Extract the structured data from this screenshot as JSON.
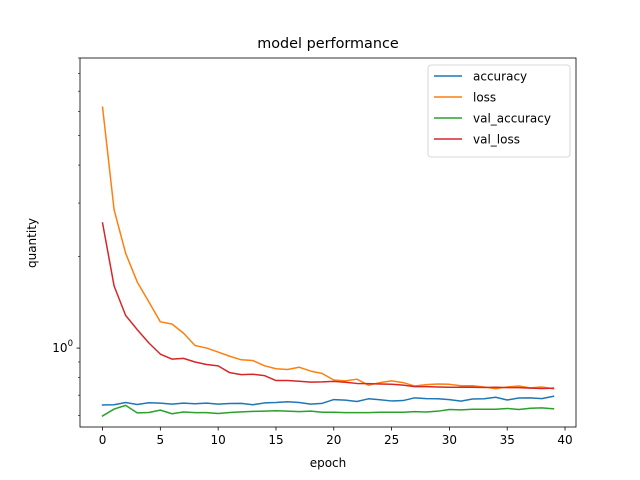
{
  "chart_data": {
    "type": "line",
    "title": "model performance",
    "xlabel": "epoch",
    "ylabel": "quantity",
    "yscale": "log",
    "xlim": [
      -1.95,
      40.95
    ],
    "ylim": [
      0.55,
      9.0
    ],
    "xticks": [
      0,
      5,
      10,
      15,
      20,
      25,
      30,
      35,
      40
    ],
    "yticks": [
      1.0
    ],
    "ytick_labels": [
      "10^0"
    ],
    "legend_position": "upper right",
    "series": [
      {
        "name": "accuracy",
        "color": "#1f77b4",
        "x": [
          0,
          1,
          2,
          3,
          4,
          5,
          6,
          7,
          8,
          9,
          10,
          11,
          12,
          13,
          14,
          15,
          16,
          17,
          18,
          19,
          20,
          21,
          22,
          23,
          24,
          25,
          26,
          27,
          28,
          29,
          30,
          31,
          32,
          33,
          34,
          35,
          36,
          37,
          38,
          39
        ],
        "values": [
          0.65,
          0.651,
          0.662,
          0.652,
          0.661,
          0.659,
          0.654,
          0.659,
          0.656,
          0.659,
          0.654,
          0.657,
          0.658,
          0.651,
          0.66,
          0.662,
          0.666,
          0.662,
          0.654,
          0.658,
          0.677,
          0.674,
          0.667,
          0.681,
          0.676,
          0.67,
          0.672,
          0.686,
          0.682,
          0.681,
          0.677,
          0.669,
          0.68,
          0.681,
          0.689,
          0.675,
          0.685,
          0.686,
          0.682,
          0.694
        ]
      },
      {
        "name": "loss",
        "color": "#ff7f0e",
        "x": [
          0,
          1,
          2,
          3,
          4,
          5,
          6,
          7,
          8,
          9,
          10,
          11,
          12,
          13,
          14,
          15,
          16,
          17,
          18,
          19,
          20,
          21,
          22,
          23,
          24,
          25,
          26,
          27,
          28,
          29,
          30,
          31,
          32,
          33,
          34,
          35,
          36,
          37,
          38,
          39
        ],
        "values": [
          6.2,
          2.85,
          2.05,
          1.65,
          1.42,
          1.22,
          1.2,
          1.12,
          1.02,
          1.0,
          0.97,
          0.94,
          0.915,
          0.91,
          0.875,
          0.855,
          0.85,
          0.865,
          0.84,
          0.825,
          0.785,
          0.78,
          0.79,
          0.755,
          0.77,
          0.78,
          0.77,
          0.75,
          0.758,
          0.762,
          0.76,
          0.752,
          0.752,
          0.745,
          0.735,
          0.745,
          0.75,
          0.74,
          0.745,
          0.735
        ]
      },
      {
        "name": "val_accuracy",
        "color": "#2ca02c",
        "x": [
          0,
          1,
          2,
          3,
          4,
          5,
          6,
          7,
          8,
          9,
          10,
          11,
          12,
          13,
          14,
          15,
          16,
          17,
          18,
          19,
          20,
          21,
          22,
          23,
          24,
          25,
          26,
          27,
          28,
          29,
          30,
          31,
          32,
          33,
          34,
          35,
          36,
          37,
          38,
          39
        ],
        "values": [
          0.598,
          0.63,
          0.648,
          0.612,
          0.614,
          0.625,
          0.608,
          0.616,
          0.613,
          0.613,
          0.609,
          0.614,
          0.617,
          0.619,
          0.62,
          0.622,
          0.62,
          0.618,
          0.62,
          0.615,
          0.615,
          0.613,
          0.613,
          0.613,
          0.615,
          0.615,
          0.615,
          0.618,
          0.616,
          0.62,
          0.628,
          0.626,
          0.629,
          0.629,
          0.629,
          0.633,
          0.628,
          0.634,
          0.636,
          0.631
        ]
      },
      {
        "name": "val_loss",
        "color": "#d62728",
        "x": [
          0,
          1,
          2,
          3,
          4,
          5,
          6,
          7,
          8,
          9,
          10,
          11,
          12,
          13,
          14,
          15,
          16,
          17,
          18,
          19,
          20,
          21,
          22,
          23,
          24,
          25,
          26,
          27,
          28,
          29,
          30,
          31,
          32,
          33,
          34,
          35,
          36,
          37,
          38,
          39
        ],
        "values": [
          2.58,
          1.6,
          1.28,
          1.15,
          1.04,
          0.955,
          0.92,
          0.925,
          0.9,
          0.883,
          0.874,
          0.83,
          0.818,
          0.82,
          0.812,
          0.782,
          0.782,
          0.778,
          0.773,
          0.774,
          0.777,
          0.772,
          0.765,
          0.764,
          0.762,
          0.76,
          0.755,
          0.747,
          0.747,
          0.745,
          0.743,
          0.743,
          0.743,
          0.742,
          0.743,
          0.741,
          0.741,
          0.738,
          0.736,
          0.738
        ]
      }
    ]
  }
}
